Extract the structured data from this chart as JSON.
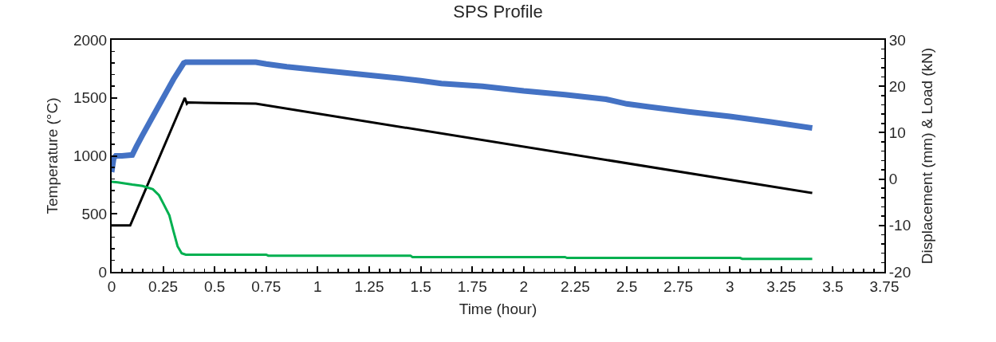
{
  "chart_data": {
    "type": "line",
    "title": "SPS Profile",
    "xlabel": "Time (hour)",
    "ylabel": "Temperature (°C)",
    "y2label": "Displacement (mm) & Load (kN)",
    "xlim": [
      0,
      3.75
    ],
    "xticks": [
      0,
      0.25,
      0.5,
      0.75,
      1,
      1.25,
      1.5,
      1.75,
      2,
      2.25,
      2.5,
      2.75,
      3,
      3.25,
      3.5,
      3.75
    ],
    "ylim": [
      0,
      2000
    ],
    "yticks": [
      0,
      500,
      1000,
      1500,
      2000
    ],
    "y2lim": [
      -20,
      30
    ],
    "y2ticks": [
      -20,
      -10,
      0,
      10,
      20,
      30
    ],
    "grid": false,
    "marker": "none",
    "line_style": "solid",
    "series": [
      {
        "color": "#4472c4",
        "axis": "y2",
        "x": [
          0,
          0.01,
          0.02,
          0.05,
          0.1,
          0.12,
          0.15,
          0.2,
          0.25,
          0.3,
          0.35,
          0.36,
          0.5,
          0.7,
          0.75,
          0.85,
          1.0,
          1.2,
          1.4,
          1.5,
          1.6,
          1.8,
          2.0,
          2.2,
          2.4,
          2.5,
          2.6,
          2.8,
          3.0,
          3.2,
          3.4
        ],
        "values": [
          1.5,
          4.5,
          5,
          5,
          5.2,
          7,
          9.5,
          13.5,
          17.5,
          21.5,
          25,
          25.2,
          25.2,
          25.2,
          24.8,
          24.2,
          23.5,
          22.6,
          21.7,
          21.2,
          20.6,
          20,
          19,
          18.2,
          17.2,
          16.2,
          15.6,
          14.5,
          13.5,
          12.3,
          11
        ]
      },
      {
        "color": "#00b050",
        "axis": "y2",
        "x": [
          0,
          0.03,
          0.1,
          0.15,
          0.2,
          0.23,
          0.25,
          0.28,
          0.3,
          0.32,
          0.34,
          0.36,
          0.75,
          0.76,
          1.45,
          1.46,
          2.2,
          2.21,
          3.05,
          3.06,
          3.4
        ],
        "values": [
          -0.6,
          -0.7,
          -1.2,
          -1.5,
          -2.2,
          -3.5,
          -5.2,
          -7.8,
          -11.2,
          -14.5,
          -16,
          -16.3,
          -16.3,
          -16.5,
          -16.5,
          -16.8,
          -16.8,
          -17,
          -17,
          -17.2,
          -17.2
        ]
      },
      {
        "color": "#000000",
        "axis": "y",
        "x": [
          0,
          0.09,
          0.355,
          0.365,
          0.37,
          0.7,
          3.4
        ],
        "values": [
          400,
          400,
          1500,
          1450,
          1460,
          1450,
          680
        ]
      }
    ]
  }
}
